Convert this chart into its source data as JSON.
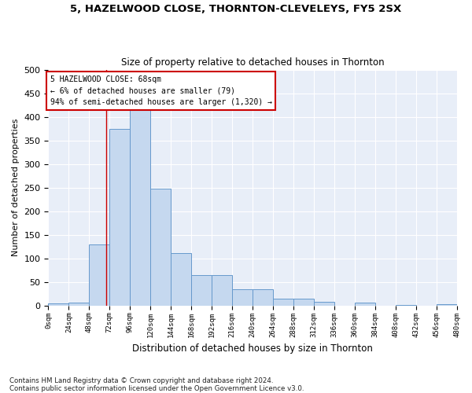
{
  "title": "5, HAZELWOOD CLOSE, THORNTON-CLEVELEYS, FY5 2SX",
  "subtitle": "Size of property relative to detached houses in Thornton",
  "xlabel": "Distribution of detached houses by size in Thornton",
  "ylabel": "Number of detached properties",
  "bar_color": "#c5d8ef",
  "bar_edge_color": "#6699cc",
  "bin_edges": [
    0,
    24,
    48,
    72,
    96,
    120,
    144,
    168,
    192,
    216,
    240,
    264,
    288,
    312,
    336,
    360,
    384,
    408,
    432,
    456,
    480
  ],
  "bar_heights": [
    4,
    6,
    130,
    375,
    415,
    247,
    112,
    65,
    65,
    35,
    35,
    14,
    14,
    8,
    0,
    6,
    0,
    1,
    0,
    3
  ],
  "property_size": 68,
  "vline_color": "#cc0000",
  "annotation_text": "5 HAZELWOOD CLOSE: 68sqm\n← 6% of detached houses are smaller (79)\n94% of semi-detached houses are larger (1,320) →",
  "annotation_box_color": "#ffffff",
  "annotation_box_edge_color": "#cc0000",
  "footnote": "Contains HM Land Registry data © Crown copyright and database right 2024.\nContains public sector information licensed under the Open Government Licence v3.0.",
  "ylim": [
    0,
    500
  ],
  "xlim": [
    0,
    480
  ],
  "background_color": "#e8eef8"
}
